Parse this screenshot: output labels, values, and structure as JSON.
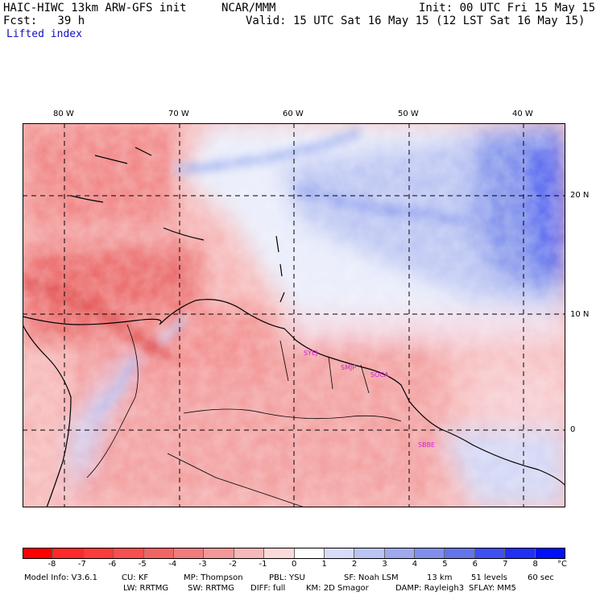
{
  "header": {
    "model_line": "HAIC-HIWC 13km ARW-GFS init",
    "org": "NCAR/MMM",
    "init": "Init: 00 UTC Fri 15 May 15",
    "fcst": "Fcst:   39 h",
    "valid": "Valid: 15 UTC Sat 16 May 15 (12 LST Sat 16 May 15)",
    "field": "Lifted index"
  },
  "map": {
    "lon_labels": [
      "80 W",
      "70 W",
      "60 W",
      "50 W",
      "40 W"
    ],
    "lat_labels": [
      "20 N",
      "10 N",
      "0"
    ],
    "stations": [
      "SYEJ",
      "SMJP",
      "SOCA",
      "SBBE"
    ],
    "colors": {
      "land_border": "#000000",
      "grid": "#000000",
      "station": "#d020d0"
    }
  },
  "colorbar": {
    "ticks": [
      "-8",
      "-7",
      "-6",
      "-5",
      "-4",
      "-3",
      "-2",
      "-1",
      "0",
      "1",
      "2",
      "3",
      "4",
      "5",
      "6",
      "7",
      "8"
    ],
    "unit": "°C",
    "colors": [
      "#ff0000",
      "#ff2a2a",
      "#fc3c3c",
      "#f65050",
      "#f26464",
      "#f07c7c",
      "#f39898",
      "#f6b8b8",
      "#fbdada",
      "#ffffff",
      "#d8dcf8",
      "#bcc4f2",
      "#a0a8ee",
      "#8090ea",
      "#6474ea",
      "#4050f0",
      "#2030f4",
      "#0010f8"
    ]
  },
  "footer": {
    "line1": [
      "Model Info: V3.6.1",
      "CU: KF",
      "MP: Thompson",
      "PBL: YSU",
      "SF: Noah LSM",
      "13 km",
      "51 levels",
      "60 sec"
    ],
    "line2": [
      "LW: RRTMG",
      "SW: RRTMG",
      "DIFF: full",
      "KM: 2D Smagor",
      "DAMP: Rayleigh3",
      "SFLAY: MM5"
    ]
  }
}
